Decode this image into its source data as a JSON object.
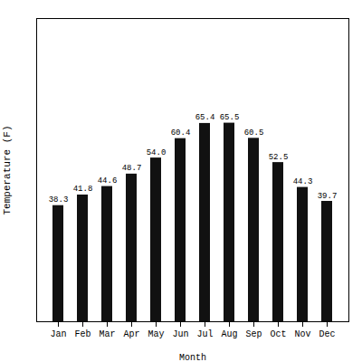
{
  "chart_data": {
    "type": "bar",
    "categories": [
      "Jan",
      "Feb",
      "Mar",
      "Apr",
      "May",
      "Jun",
      "Jul",
      "Aug",
      "Sep",
      "Oct",
      "Nov",
      "Dec"
    ],
    "values": [
      38.3,
      41.8,
      44.6,
      48.7,
      54.0,
      60.4,
      65.4,
      65.5,
      60.5,
      52.5,
      44.3,
      39.7
    ],
    "value_labels": [
      "38.3",
      "41.8",
      "44.6",
      "48.7",
      "54.0",
      "60.4",
      "65.4",
      "65.5",
      "60.5",
      "52.5",
      "44.3",
      "39.7"
    ],
    "data_labels": true,
    "color": "#111111",
    "x_label": "Month",
    "y_label": "Temperature (F)",
    "ylim": [
      0,
      100
    ],
    "tick_labels": "x",
    "grid": false
  }
}
